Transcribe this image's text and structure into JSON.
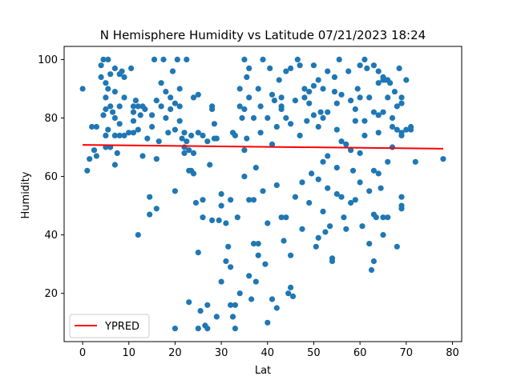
{
  "chart_data": {
    "type": "scatter",
    "title": "N Hemisphere Humidity vs Latitude 07/21/2023 18:24",
    "xlabel": "Lat",
    "ylabel": "Humidity",
    "xlim": [
      -4,
      82
    ],
    "ylim": [
      3.5,
      104.5
    ],
    "x_ticks": [
      0,
      10,
      20,
      30,
      40,
      50,
      60,
      70,
      80
    ],
    "y_ticks": [
      20,
      40,
      60,
      80,
      100
    ],
    "grid": false,
    "legend": {
      "placement": "lower-left",
      "entries": [
        "YPRED"
      ]
    },
    "colors": {
      "points": "#1f77b4",
      "regression": "#ff0000"
    },
    "regression_line": {
      "name": "YPRED",
      "x": [
        0,
        78
      ],
      "y": [
        70.8,
        69.5
      ]
    },
    "points": [
      [
        0,
        90
      ],
      [
        1,
        62
      ],
      [
        1.5,
        66
      ],
      [
        2,
        77
      ],
      [
        2.5,
        69
      ],
      [
        3,
        67
      ],
      [
        3,
        77
      ],
      [
        4,
        94
      ],
      [
        4,
        98
      ],
      [
        4.5,
        100
      ],
      [
        4.5,
        81
      ],
      [
        5,
        87
      ],
      [
        5,
        92
      ],
      [
        5,
        83
      ],
      [
        5,
        74
      ],
      [
        5,
        70
      ],
      [
        5.5,
        100
      ],
      [
        5.5,
        90
      ],
      [
        5.5,
        76
      ],
      [
        6,
        95
      ],
      [
        6,
        84
      ],
      [
        6,
        70
      ],
      [
        6.5,
        82
      ],
      [
        7,
        97
      ],
      [
        7,
        89
      ],
      [
        7,
        80
      ],
      [
        7,
        74
      ],
      [
        7,
        64
      ],
      [
        7.5,
        68
      ],
      [
        8,
        95
      ],
      [
        8,
        84
      ],
      [
        8,
        78
      ],
      [
        8,
        74
      ],
      [
        8.5,
        96
      ],
      [
        9,
        94
      ],
      [
        9,
        87
      ],
      [
        9,
        74
      ],
      [
        10,
        75
      ],
      [
        10.5,
        97
      ],
      [
        11,
        84
      ],
      [
        11,
        82
      ],
      [
        11,
        79
      ],
      [
        11,
        75
      ],
      [
        11.5,
        86
      ],
      [
        12,
        40
      ],
      [
        12,
        84
      ],
      [
        12,
        76
      ],
      [
        12.5,
        81
      ],
      [
        13,
        84
      ],
      [
        13,
        67
      ],
      [
        13.5,
        83
      ],
      [
        14,
        73
      ],
      [
        14.5,
        47
      ],
      [
        14.5,
        53
      ],
      [
        15,
        77
      ],
      [
        15,
        81
      ],
      [
        15.5,
        100
      ],
      [
        16,
        86
      ],
      [
        16,
        66
      ],
      [
        16,
        49
      ],
      [
        16.5,
        72
      ],
      [
        17,
        92
      ],
      [
        17,
        84
      ],
      [
        17.5,
        100
      ],
      [
        18,
        89
      ],
      [
        18,
        80
      ],
      [
        18.5,
        75
      ],
      [
        19,
        87
      ],
      [
        19,
        83
      ],
      [
        19.5,
        96
      ],
      [
        20,
        85
      ],
      [
        20,
        76
      ],
      [
        20,
        55
      ],
      [
        20,
        8
      ],
      [
        20.5,
        100
      ],
      [
        21,
        90
      ],
      [
        21,
        84
      ],
      [
        21,
        79
      ],
      [
        21.5,
        73
      ],
      [
        22,
        75
      ],
      [
        22,
        70
      ],
      [
        22,
        68
      ],
      [
        22.5,
        100
      ],
      [
        22.5,
        72
      ],
      [
        23,
        69
      ],
      [
        23,
        62
      ],
      [
        23,
        17
      ],
      [
        23.5,
        74
      ],
      [
        23.5,
        62
      ],
      [
        24,
        87
      ],
      [
        24,
        68
      ],
      [
        24,
        61
      ],
      [
        24.5,
        51
      ],
      [
        25,
        88
      ],
      [
        25,
        75
      ],
      [
        25,
        34
      ],
      [
        25,
        8
      ],
      [
        25.5,
        14
      ],
      [
        26,
        46
      ],
      [
        26,
        74
      ],
      [
        26,
        52
      ],
      [
        26.5,
        9
      ],
      [
        27,
        72
      ],
      [
        27,
        16
      ],
      [
        27,
        8
      ],
      [
        27.5,
        64
      ],
      [
        28,
        84
      ],
      [
        28,
        83
      ],
      [
        28,
        45
      ],
      [
        28.5,
        78
      ],
      [
        28.5,
        73
      ],
      [
        29,
        73
      ],
      [
        29,
        12
      ],
      [
        29.5,
        45
      ],
      [
        30,
        24
      ],
      [
        30,
        50
      ],
      [
        30,
        54
      ],
      [
        31,
        44
      ],
      [
        31,
        31
      ],
      [
        31.5,
        36
      ],
      [
        32,
        29
      ],
      [
        32,
        52
      ],
      [
        32,
        16
      ],
      [
        32.5,
        12
      ],
      [
        32.5,
        75
      ],
      [
        33,
        74
      ],
      [
        33,
        16
      ],
      [
        33,
        8
      ],
      [
        33.5,
        46
      ],
      [
        34,
        20
      ],
      [
        34,
        84
      ],
      [
        34,
        90
      ],
      [
        34.5,
        80
      ],
      [
        35,
        83
      ],
      [
        35,
        100
      ],
      [
        35,
        69
      ],
      [
        35,
        60
      ],
      [
        35.5,
        94
      ],
      [
        35.5,
        73
      ],
      [
        36,
        97
      ],
      [
        36,
        87
      ],
      [
        36,
        52
      ],
      [
        36,
        26
      ],
      [
        36.5,
        18
      ],
      [
        37,
        80
      ],
      [
        37,
        52
      ],
      [
        37,
        37
      ],
      [
        37.5,
        24
      ],
      [
        37.5,
        63
      ],
      [
        38,
        90
      ],
      [
        38,
        37
      ],
      [
        38,
        33
      ],
      [
        38.5,
        84
      ],
      [
        38.5,
        75
      ],
      [
        39,
        100
      ],
      [
        39,
        55
      ],
      [
        39.5,
        30
      ],
      [
        40,
        80
      ],
      [
        40,
        44
      ],
      [
        40,
        10
      ],
      [
        40.5,
        97
      ],
      [
        41,
        88
      ],
      [
        41,
        71
      ],
      [
        41,
        18
      ],
      [
        41.5,
        86
      ],
      [
        42,
        77
      ],
      [
        42,
        57
      ],
      [
        42,
        15
      ],
      [
        42.5,
        93
      ],
      [
        43,
        87
      ],
      [
        43,
        84
      ],
      [
        43,
        83
      ],
      [
        43,
        46
      ],
      [
        43.5,
        38
      ],
      [
        44,
        96
      ],
      [
        44,
        80
      ],
      [
        44,
        46
      ],
      [
        44.5,
        20
      ],
      [
        45,
        97
      ],
      [
        45,
        78
      ],
      [
        45,
        33
      ],
      [
        45,
        22
      ],
      [
        45.5,
        19
      ],
      [
        46,
        86
      ],
      [
        46,
        53
      ],
      [
        46.5,
        100
      ],
      [
        47,
        98
      ],
      [
        47,
        74
      ],
      [
        47.5,
        58
      ],
      [
        47.5,
        42
      ],
      [
        48,
        90
      ],
      [
        48,
        87
      ],
      [
        48.5,
        79
      ],
      [
        49,
        89
      ],
      [
        49,
        85
      ],
      [
        49,
        51
      ],
      [
        49.5,
        61
      ],
      [
        50,
        98
      ],
      [
        50,
        91
      ],
      [
        50,
        81
      ],
      [
        50.5,
        36
      ],
      [
        51,
        93
      ],
      [
        51,
        77
      ],
      [
        51,
        59
      ],
      [
        51,
        39
      ],
      [
        51.5,
        82
      ],
      [
        52,
        90
      ],
      [
        52,
        80
      ],
      [
        52,
        65
      ],
      [
        52,
        48
      ],
      [
        52.5,
        41
      ],
      [
        53,
        96
      ],
      [
        53,
        82
      ],
      [
        53,
        67
      ],
      [
        53,
        56
      ],
      [
        53.5,
        43
      ],
      [
        54,
        31
      ],
      [
        54,
        32
      ],
      [
        54.5,
        94
      ],
      [
        54.5,
        89
      ],
      [
        55,
        85
      ],
      [
        55,
        76
      ],
      [
        55,
        63
      ],
      [
        55,
        54
      ],
      [
        55.5,
        100
      ],
      [
        56,
        88
      ],
      [
        56,
        72
      ],
      [
        56,
        53
      ],
      [
        56.5,
        46
      ],
      [
        57,
        71
      ],
      [
        57,
        42
      ],
      [
        57.5,
        96
      ],
      [
        58,
        86
      ],
      [
        58,
        69
      ],
      [
        58,
        51
      ],
      [
        58.5,
        62
      ],
      [
        59,
        83
      ],
      [
        59,
        79
      ],
      [
        59,
        52
      ],
      [
        59.5,
        90
      ],
      [
        60,
        98
      ],
      [
        60,
        87
      ],
      [
        60,
        68
      ],
      [
        60,
        58
      ],
      [
        60.5,
        43
      ],
      [
        61,
        100
      ],
      [
        61,
        79
      ],
      [
        61,
        74
      ],
      [
        61.5,
        97
      ],
      [
        62,
        87
      ],
      [
        62,
        55
      ],
      [
        62,
        37
      ],
      [
        62.5,
        28
      ],
      [
        63,
        98
      ],
      [
        63,
        82
      ],
      [
        63,
        62
      ],
      [
        63,
        47
      ],
      [
        63,
        31
      ],
      [
        63.5,
        46
      ],
      [
        64,
        96
      ],
      [
        64,
        92
      ],
      [
        64,
        81
      ],
      [
        64,
        75
      ],
      [
        64,
        61
      ],
      [
        64.5,
        56
      ],
      [
        65,
        94
      ],
      [
        65,
        93
      ],
      [
        65,
        82
      ],
      [
        65,
        46
      ],
      [
        65,
        40
      ],
      [
        65.5,
        93
      ],
      [
        66,
        93
      ],
      [
        66,
        87
      ],
      [
        66,
        65
      ],
      [
        66,
        46
      ],
      [
        66.5,
        92
      ],
      [
        67,
        80
      ],
      [
        67,
        77
      ],
      [
        67,
        70
      ],
      [
        67.5,
        89
      ],
      [
        68,
        84
      ],
      [
        68,
        76
      ],
      [
        68,
        36
      ],
      [
        68.5,
        97
      ],
      [
        69,
        87
      ],
      [
        69,
        85
      ],
      [
        69,
        75
      ],
      [
        69,
        74
      ],
      [
        69,
        53
      ],
      [
        69,
        50
      ],
      [
        69,
        49
      ],
      [
        70,
        93
      ],
      [
        70,
        76
      ],
      [
        71,
        77
      ],
      [
        71,
        76
      ],
      [
        72,
        65
      ],
      [
        78,
        66
      ]
    ]
  }
}
